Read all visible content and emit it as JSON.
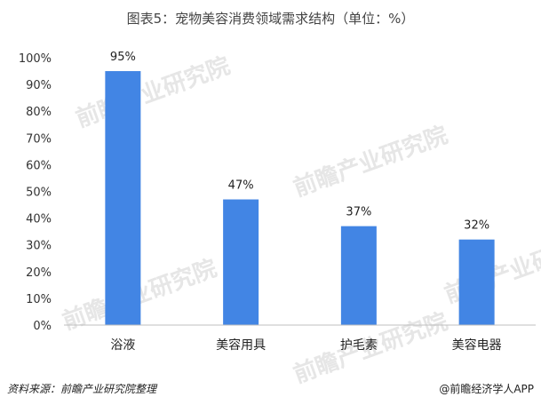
{
  "chart_data": {
    "type": "bar",
    "title": "图表5：宠物美容消费领域需求结构（单位：%）",
    "categories": [
      "浴液",
      "美容用具",
      "护毛素",
      "美容电器"
    ],
    "values": [
      95,
      47,
      37,
      32
    ],
    "value_labels": [
      "95%",
      "47%",
      "37%",
      "32%"
    ],
    "ylim": [
      0,
      100
    ],
    "yticks": [
      "0%",
      "10%",
      "20%",
      "30%",
      "40%",
      "50%",
      "60%",
      "70%",
      "80%",
      "90%",
      "100%"
    ],
    "xlabel": "",
    "ylabel": "",
    "grid": false,
    "legend": "none",
    "bar_color": "#4285e4"
  },
  "footer": {
    "source": "资料来源：前瞻产业研究院整理",
    "brand": "@前瞻经济学人APP"
  },
  "watermark": {
    "text": "前瞻产业研究院"
  }
}
